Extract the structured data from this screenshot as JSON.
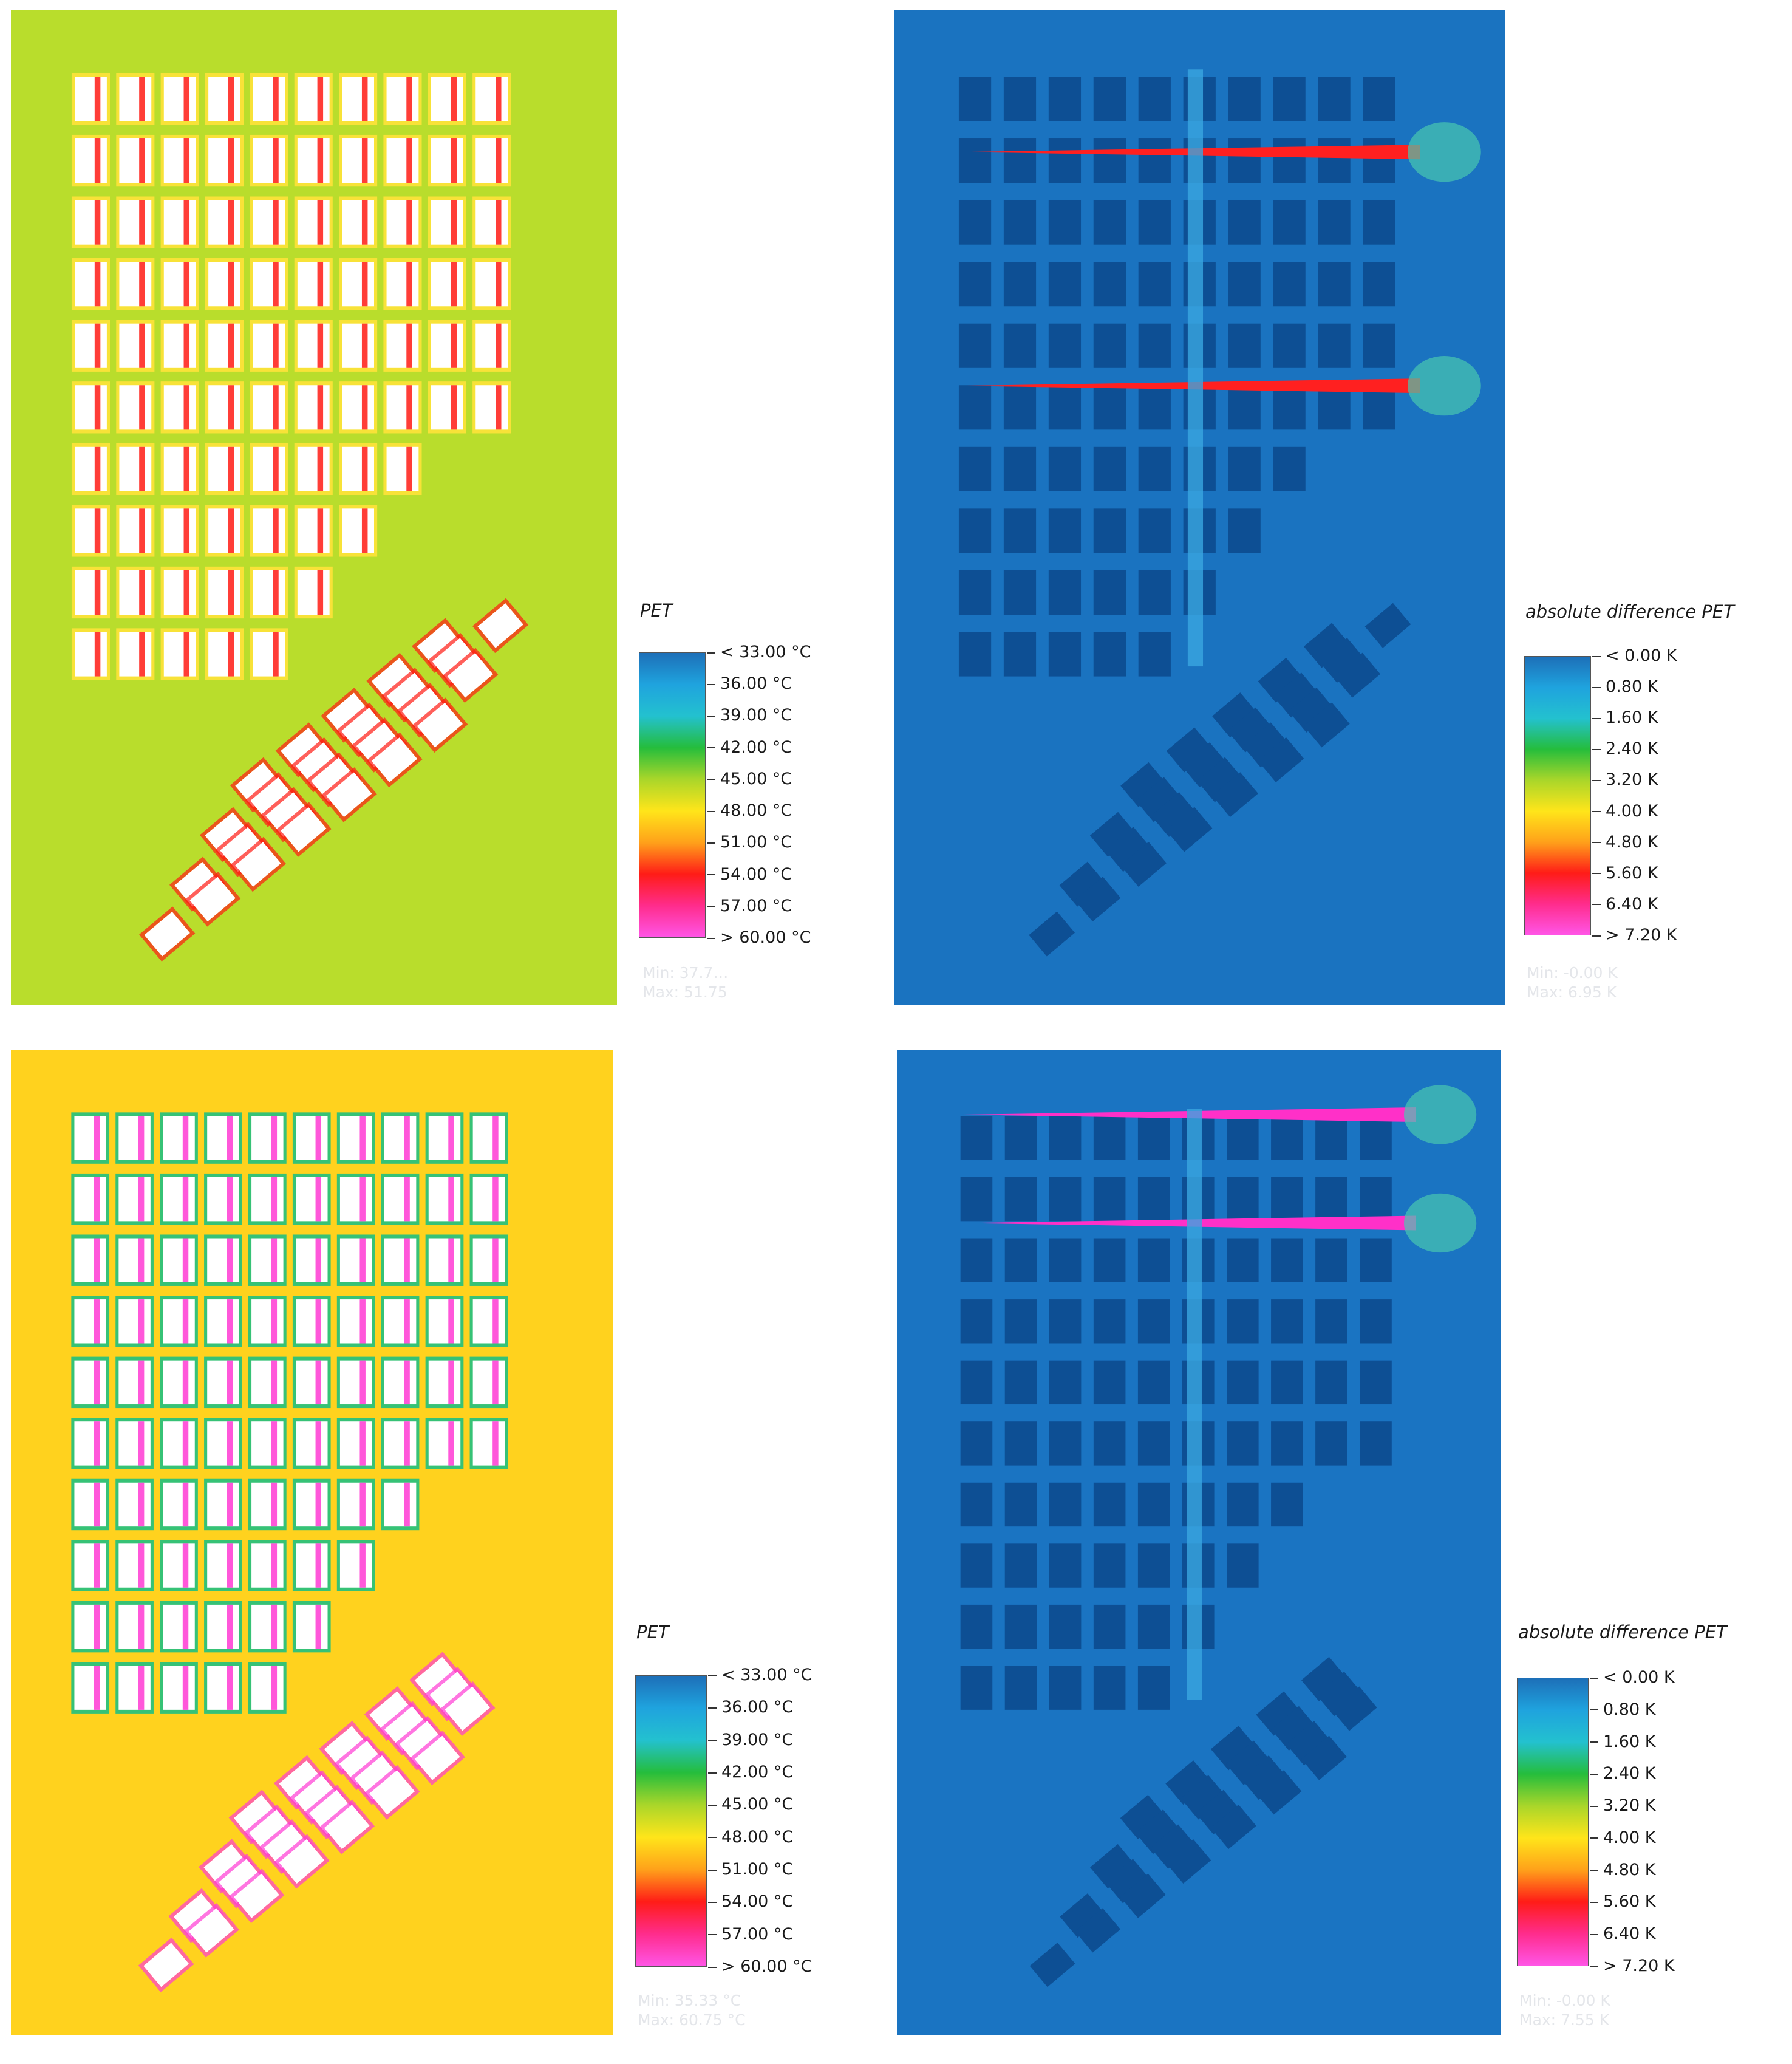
{
  "panels": [
    {
      "id": "tl",
      "scheme": "pet",
      "bg": "#b9dd2c",
      "hot": "#ff1b14",
      "edge": "#ffe23a",
      "building": "#ffffff",
      "stat_min": "Min: 37.7…",
      "stat_max": "Max: 51.75"
    },
    {
      "id": "tr",
      "scheme": "diff",
      "bg": "#1a73c0",
      "hot": "#ff2020",
      "edge": "#48c6ec",
      "building": "#0d4f94",
      "stat_min": "Min: -0.00 K",
      "stat_max": "Max: 6.95 K"
    },
    {
      "id": "bl",
      "scheme": "pet",
      "bg": "#ffd21e",
      "hot": "#ff3ad4",
      "edge": "#20c080",
      "building": "#ffffff",
      "stat_min": "Min: 35.33 °C",
      "stat_max": "Max: 60.75 °C"
    },
    {
      "id": "br",
      "scheme": "diff",
      "bg": "#1a74c2",
      "hot": "#ff30c8",
      "edge": "#48c6ec",
      "building": "#0d4f94",
      "stat_min": "Min: -0.00 K",
      "stat_max": "Max: 7.55 K"
    }
  ],
  "legends": {
    "pet": {
      "title": "PET",
      "labels": [
        "< 33.00 °C",
        "36.00  °C",
        "39.00  °C",
        "42.00  °C",
        "45.00  °C",
        "48.00  °C",
        "51.00  °C",
        "54.00  °C",
        "57.00  °C",
        "> 60.00 °C"
      ],
      "colors": [
        "#1d6fb8",
        "#1fa3de",
        "#23c1cf",
        "#25bd3c",
        "#a9d62a",
        "#ffe51a",
        "#ffa11a",
        "#ff1c17",
        "#ff2c8c",
        "#ff55e6"
      ]
    },
    "diff": {
      "title": "absolute difference PET",
      "labels": [
        "< 0.00 K",
        "0.80  K",
        "1.60  K",
        "2.40  K",
        "3.20  K",
        "4.00  K",
        "4.80  K",
        "5.60  K",
        "6.40  K",
        "> 7.20 K"
      ],
      "colors": [
        "#1d6fb8",
        "#1fa3de",
        "#23c1cf",
        "#25bd3c",
        "#a9d62a",
        "#ffe51a",
        "#ffa11a",
        "#ff1c17",
        "#ff2c8c",
        "#ff55e6"
      ]
    }
  }
}
